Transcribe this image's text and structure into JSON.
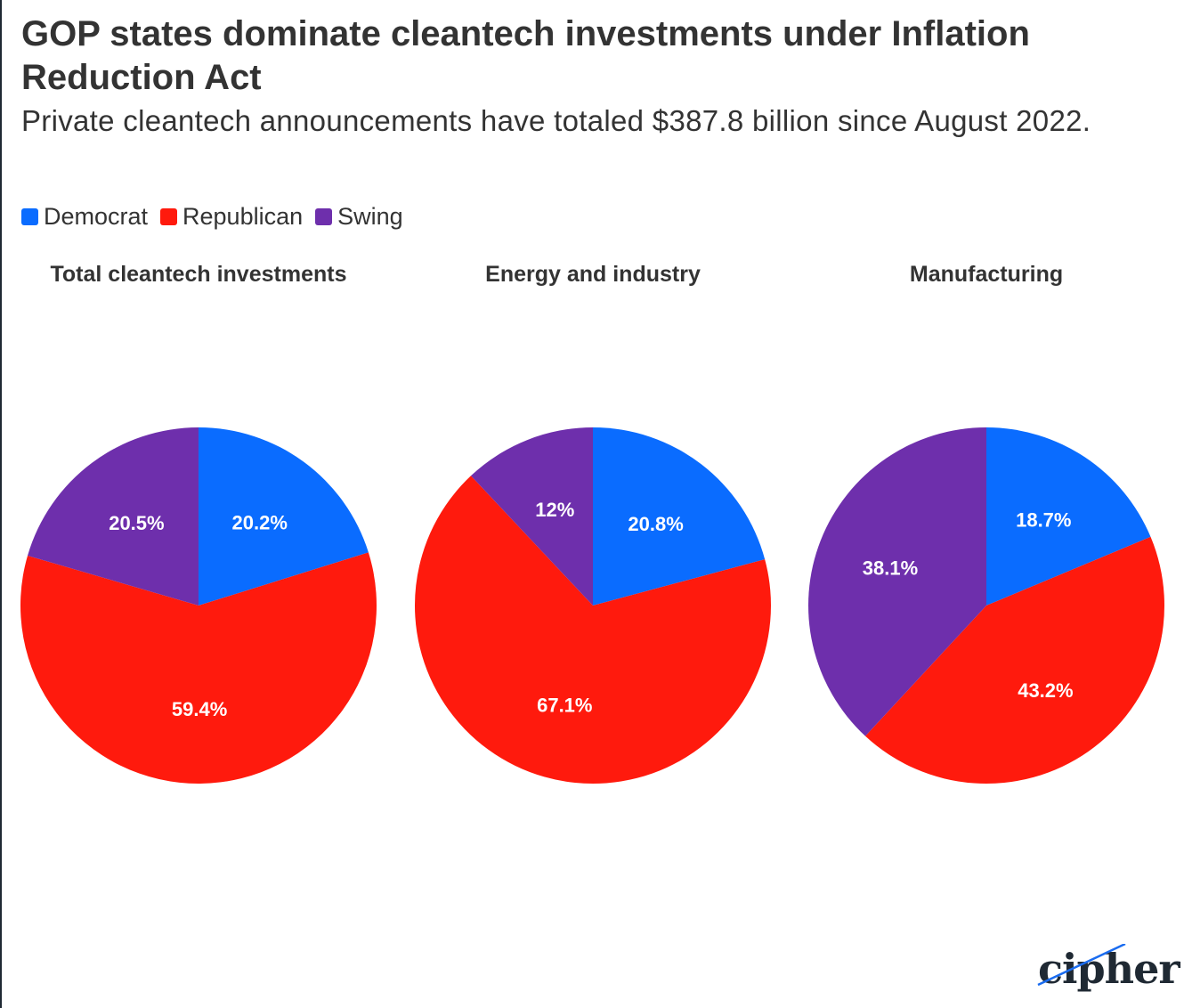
{
  "title": "GOP states dominate cleantech investments under Inflation Reduction Act",
  "subtitle": "Private cleantech announcements have totaled $387.8 billion since August 2022.",
  "logo": {
    "text": "cipher"
  },
  "colors": {
    "Democrat": "#0a6cff",
    "Republican": "#ff1a0d",
    "Swing": "#6e2fac"
  },
  "legend": [
    {
      "label": "Democrat"
    },
    {
      "label": "Republican"
    },
    {
      "label": "Swing"
    }
  ],
  "chart_data": [
    {
      "type": "pie",
      "title": "Total cleantech investments",
      "slices": [
        {
          "name": "Democrat",
          "value": 20.2,
          "label": "20.2%"
        },
        {
          "name": "Republican",
          "value": 59.4,
          "label": "59.4%"
        },
        {
          "name": "Swing",
          "value": 20.5,
          "label": "20.5%"
        }
      ]
    },
    {
      "type": "pie",
      "title": "Energy and industry",
      "slices": [
        {
          "name": "Democrat",
          "value": 20.8,
          "label": "20.8%"
        },
        {
          "name": "Republican",
          "value": 67.1,
          "label": "67.1%"
        },
        {
          "name": "Swing",
          "value": 12,
          "label": "12%"
        }
      ]
    },
    {
      "type": "pie",
      "title": "Manufacturing",
      "slices": [
        {
          "name": "Democrat",
          "value": 18.7,
          "label": "18.7%"
        },
        {
          "name": "Republican",
          "value": 43.2,
          "label": "43.2%"
        },
        {
          "name": "Swing",
          "value": 38.1,
          "label": "38.1%"
        }
      ]
    }
  ]
}
